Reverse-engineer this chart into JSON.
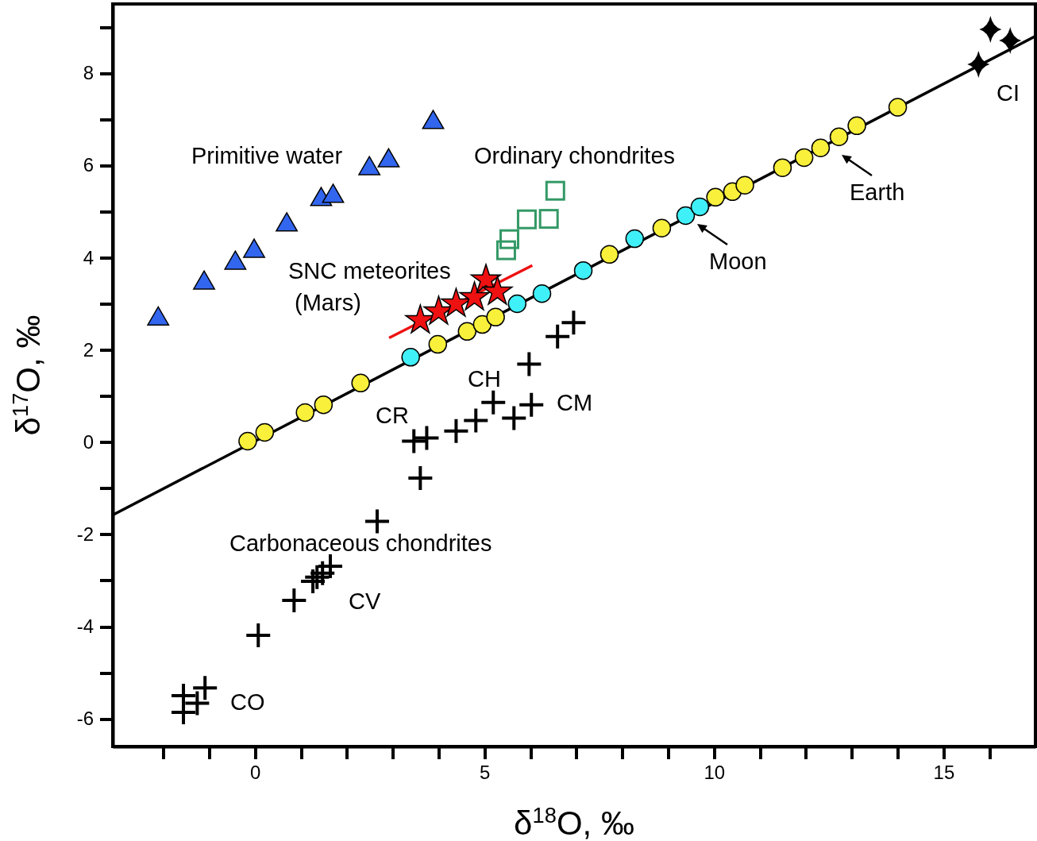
{
  "chart_data": {
    "type": "scatter",
    "xlabel": "δ$^{18}$O, ‰",
    "ylabel": "δ$^{17}$O, ‰",
    "xlim": [
      -3.1,
      17
    ],
    "ylim": [
      -6.6,
      9.5
    ],
    "xticks": [
      {
        "value": -2,
        "label": null
      },
      {
        "value": -1,
        "label": null
      },
      0,
      {
        "value": 1,
        "label": null
      },
      {
        "value": 2,
        "label": null
      },
      {
        "value": 3,
        "label": null
      },
      {
        "value": 4,
        "label": null
      },
      5,
      {
        "value": 6,
        "label": null
      },
      {
        "value": 7,
        "label": null
      },
      {
        "value": 8,
        "label": null
      },
      {
        "value": 9,
        "label": null
      },
      10,
      {
        "value": 11,
        "label": null
      },
      {
        "value": 12,
        "label": null
      },
      {
        "value": 13,
        "label": null
      },
      {
        "value": 14,
        "label": null
      },
      15,
      {
        "value": 16,
        "label": null
      }
    ],
    "yticks": [
      -6,
      {
        "value": -5,
        "label": null
      },
      -4,
      {
        "value": -3,
        "label": null
      },
      -2,
      {
        "value": -1,
        "label": null
      },
      0,
      {
        "value": 1,
        "label": null
      },
      2,
      {
        "value": 3,
        "label": null
      },
      4,
      {
        "value": 5,
        "label": null
      },
      6,
      {
        "value": 7,
        "label": null
      },
      8,
      {
        "value": 9,
        "label": null
      }
    ],
    "series": [
      {
        "type": "line",
        "color": "#000000",
        "x": [
          -3.1,
          17
        ],
        "values": [
          -1.58,
          8.8
        ]
      },
      {
        "type": "line",
        "color": "#ee1111",
        "x": [
          2.92,
          6.04
        ],
        "values": [
          2.26,
          3.83
        ]
      },
      {
        "marker": "triangle",
        "color": "#3366ee",
        "x": [
          -2.11,
          -1.11,
          -0.43,
          -0.02,
          0.69,
          1.44,
          1.7,
          2.49,
          2.91,
          3.88
        ],
        "values": [
          2.67,
          3.45,
          3.88,
          4.14,
          4.71,
          5.26,
          5.33,
          5.93,
          6.1,
          6.93
        ]
      },
      {
        "marker": "square",
        "color": "#339966",
        "x": [
          5.47,
          5.54,
          5.92,
          6.4,
          6.54
        ],
        "values": [
          4.16,
          4.4,
          4.83,
          4.84,
          5.45
        ]
      },
      {
        "marker": "circle",
        "color": "#f8f03a",
        "x": [
          -0.16,
          0.21,
          1.09,
          1.49,
          2.3,
          3.98,
          4.62,
          4.95,
          5.24,
          7.72,
          8.86,
          10.03,
          10.4,
          10.67,
          11.49,
          11.96,
          12.32,
          12.72,
          13.11,
          14.0
        ],
        "values": [
          0.02,
          0.21,
          0.64,
          0.81,
          1.28,
          2.12,
          2.4,
          2.55,
          2.71,
          4.07,
          4.64,
          5.31,
          5.43,
          5.57,
          5.95,
          6.17,
          6.38,
          6.62,
          6.86,
          7.26
        ]
      },
      {
        "marker": "circle",
        "color": "#40f0f8",
        "x": [
          3.39,
          5.71,
          6.25,
          7.15,
          8.27,
          9.38,
          9.69
        ],
        "values": [
          1.84,
          3.0,
          3.22,
          3.72,
          4.41,
          4.91,
          5.1
        ]
      },
      {
        "marker": "star",
        "color": "#ee1111",
        "x": [
          3.6,
          4.0,
          4.38,
          4.78,
          5.03,
          5.28
        ],
        "values": [
          2.64,
          2.83,
          3.0,
          3.14,
          3.52,
          3.26
        ]
      },
      {
        "marker": "diamond",
        "color": "#000000",
        "x": [
          16.02,
          16.45,
          15.76
        ],
        "values": [
          8.95,
          8.71,
          8.19
        ]
      },
      {
        "marker": "cross",
        "color": "#000000",
        "x": [
          6.94,
          6.59,
          5.97,
          5.19,
          6.02,
          5.64,
          4.81,
          4.38,
          3.74,
          3.46,
          3.6,
          2.66,
          1.64,
          1.47,
          1.35,
          1.26,
          0.85,
          0.07,
          -1.09,
          -1.26,
          -1.56,
          -1.56
        ],
        "values": [
          2.59,
          2.29,
          1.69,
          0.86,
          0.81,
          0.52,
          0.47,
          0.24,
          0.09,
          0.02,
          -0.78,
          -1.72,
          -2.69,
          -2.84,
          -2.93,
          -3.02,
          -3.43,
          -4.19,
          -5.33,
          -5.66,
          -5.5,
          -5.86
        ]
      }
    ],
    "annotations": [
      "Earth",
      "Moon",
      "Primitive water",
      "Ordinary chondrites",
      "SNC meteorites\n (Mars)",
      "CI",
      "CH",
      "CR",
      "CM",
      "Carbonaceous chondrites",
      "CV",
      "CO"
    ]
  }
}
